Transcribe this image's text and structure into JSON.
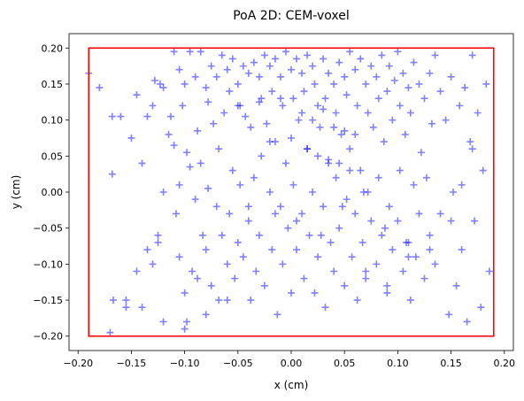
{
  "chart_data": {
    "type": "scatter",
    "title": "PoA 2D: CEM-voxel",
    "xlabel": "x (cm)",
    "ylabel": "y (cm)",
    "xlim": [
      -0.2085,
      0.2085
    ],
    "ylim": [
      -0.22,
      0.22
    ],
    "xticks": [
      -0.2,
      -0.15,
      -0.1,
      -0.05,
      0.0,
      0.05,
      0.1,
      0.15,
      0.2
    ],
    "xtick_labels": [
      "−0.20",
      "−0.15",
      "−0.10",
      "−0.05",
      "0.00",
      "0.05",
      "0.10",
      "0.15",
      "0.20"
    ],
    "yticks": [
      -0.2,
      -0.15,
      -0.1,
      -0.05,
      0.0,
      0.05,
      0.1,
      0.15,
      0.2
    ],
    "ytick_labels": [
      "−0.20",
      "−0.15",
      "−0.10",
      "−0.05",
      "0.00",
      "0.05",
      "0.10",
      "0.15",
      "0.20"
    ],
    "grid": false,
    "legend": false,
    "marker": "+",
    "marker_color": "#0000ff",
    "marker_alpha": 0.5,
    "boundary": {
      "x": [
        -0.19,
        0.19
      ],
      "y": [
        -0.2,
        0.2
      ],
      "color": "#ff0000"
    },
    "series": [
      {
        "x": [
          -0.19,
          -0.18,
          -0.17,
          -0.168,
          -0.168,
          -0.167,
          -0.16,
          -0.155,
          -0.155,
          -0.15,
          -0.145,
          -0.145,
          -0.14,
          -0.135,
          -0.135,
          -0.13,
          -0.13,
          -0.128,
          -0.125,
          -0.125,
          -0.123,
          -0.12,
          -0.12,
          -0.115,
          -0.113,
          -0.11,
          -0.11,
          -0.108,
          -0.105,
          -0.105,
          -0.105,
          -0.102,
          -0.1,
          -0.1,
          -0.098,
          -0.098,
          -0.095,
          -0.095,
          -0.093,
          -0.09,
          -0.09,
          -0.088,
          -0.088,
          -0.085,
          -0.085,
          -0.083,
          -0.08,
          -0.08,
          -0.078,
          -0.078,
          -0.075,
          -0.075,
          -0.073,
          -0.07,
          -0.07,
          -0.068,
          -0.068,
          -0.065,
          -0.065,
          -0.063,
          -0.06,
          -0.06,
          -0.058,
          -0.058,
          -0.055,
          -0.055,
          -0.053,
          -0.05,
          -0.05,
          -0.048,
          -0.048,
          -0.045,
          -0.045,
          -0.043,
          -0.04,
          -0.04,
          -0.038,
          -0.038,
          -0.035,
          -0.035,
          -0.033,
          -0.03,
          -0.03,
          -0.028,
          -0.028,
          -0.025,
          -0.025,
          -0.023,
          -0.02,
          -0.02,
          -0.018,
          -0.018,
          -0.015,
          -0.015,
          -0.013,
          -0.01,
          -0.01,
          -0.008,
          -0.008,
          -0.005,
          -0.005,
          -0.003,
          0.0,
          0.0,
          0.002,
          0.002,
          0.005,
          0.005,
          0.007,
          0.01,
          0.01,
          0.012,
          0.012,
          0.015,
          0.015,
          0.017,
          0.02,
          0.02,
          0.022,
          0.022,
          0.025,
          0.025,
          0.027,
          0.03,
          0.03,
          0.032,
          0.032,
          0.035,
          0.035,
          0.037,
          0.04,
          0.04,
          0.042,
          0.042,
          0.045,
          0.045,
          0.047,
          0.05,
          0.05,
          0.052,
          0.052,
          0.055,
          0.055,
          0.057,
          0.06,
          0.06,
          0.062,
          0.062,
          0.065,
          0.065,
          0.067,
          0.07,
          0.07,
          0.072,
          0.072,
          0.075,
          0.075,
          0.077,
          0.08,
          0.08,
          0.082,
          0.082,
          0.085,
          0.085,
          0.087,
          0.09,
          0.09,
          0.092,
          0.092,
          0.095,
          0.095,
          0.097,
          0.1,
          0.1,
          0.102,
          0.102,
          0.105,
          0.105,
          0.107,
          0.11,
          0.11,
          0.112,
          0.112,
          0.115,
          0.115,
          0.117,
          0.12,
          0.12,
          0.122,
          0.125,
          0.125,
          0.127,
          0.13,
          0.13,
          0.132,
          0.135,
          0.135,
          0.14,
          0.14,
          0.145,
          0.148,
          0.15,
          0.152,
          0.155,
          0.158,
          0.16,
          0.163,
          0.165,
          0.168,
          0.17,
          0.172,
          0.175,
          0.178,
          0.18,
          0.183,
          0.186,
          -0.05,
          -0.03,
          -0.01,
          0.01,
          0.02,
          0.03,
          0.04,
          0.05,
          0.06,
          -0.02,
          0.0,
          0.015,
          0.025,
          0.035,
          0.045,
          0.055,
          -0.04,
          -0.015,
          0.005,
          0.028,
          0.048,
          0.068,
          0.088,
          0.108,
          -0.06,
          -0.08,
          -0.1,
          0.07,
          0.09,
          0.11,
          0.13,
          -0.12,
          -0.14,
          0.15,
          0.16,
          0.17
        ],
        "y": [
          0.165,
          0.145,
          -0.195,
          0.105,
          0.025,
          -0.15,
          0.105,
          -0.16,
          -0.15,
          0.075,
          0.135,
          -0.11,
          -0.16,
          0.105,
          -0.08,
          0.12,
          -0.1,
          0.155,
          -0.07,
          -0.06,
          0.15,
          -0.18,
          0.145,
          0.08,
          0.105,
          0.195,
          0.065,
          -0.03,
          0.17,
          0.01,
          -0.09,
          0.12,
          0.15,
          -0.14,
          0.055,
          -0.18,
          0.195,
          0.035,
          -0.11,
          0.16,
          -0.01,
          0.085,
          -0.12,
          0.195,
          0.04,
          -0.06,
          0.145,
          -0.08,
          0.125,
          0.005,
          0.175,
          -0.13,
          0.095,
          0.16,
          -0.02,
          0.06,
          -0.15,
          0.19,
          -0.06,
          0.11,
          0.17,
          -0.1,
          0.14,
          -0.03,
          0.185,
          0.03,
          -0.12,
          0.15,
          -0.07,
          0.12,
          0.01,
          0.175,
          -0.09,
          0.105,
          0.165,
          -0.04,
          0.09,
          -0.15,
          0.18,
          0.02,
          -0.11,
          0.16,
          -0.06,
          0.13,
          0.05,
          0.19,
          -0.13,
          0.095,
          0.175,
          0.0,
          0.14,
          -0.08,
          0.185,
          0.07,
          -0.17,
          0.16,
          -0.02,
          0.12,
          -0.1,
          0.195,
          0.04,
          -0.05,
          0.17,
          -0.14,
          0.13,
          0.01,
          0.185,
          -0.08,
          0.1,
          0.165,
          -0.03,
          0.14,
          -0.12,
          0.19,
          0.06,
          -0.06,
          0.175,
          0.0,
          0.15,
          -0.14,
          0.12,
          -0.09,
          0.09,
          0.185,
          -0.02,
          0.13,
          -0.16,
          0.165,
          0.04,
          -0.07,
          0.15,
          -0.11,
          0.11,
          0.02,
          0.18,
          -0.05,
          0.08,
          0.16,
          -0.13,
          0.135,
          -0.01,
          0.195,
          0.06,
          -0.09,
          0.17,
          -0.03,
          0.12,
          -0.15,
          0.185,
          0.03,
          -0.07,
          0.15,
          -0.12,
          0.11,
          0.0,
          0.175,
          -0.04,
          0.09,
          0.16,
          -0.1,
          0.13,
          0.02,
          0.19,
          -0.06,
          0.07,
          0.14,
          -0.13,
          0.175,
          -0.02,
          0.1,
          -0.08,
          0.155,
          0.195,
          -0.04,
          0.12,
          0.03,
          0.165,
          -0.11,
          0.08,
          0.145,
          -0.07,
          0.11,
          -0.15,
          0.18,
          0.01,
          -0.09,
          0.15,
          -0.03,
          0.055,
          0.13,
          -0.12,
          0.02,
          0.165,
          -0.06,
          0.095,
          0.19,
          -0.1,
          0.14,
          -0.03,
          0.1,
          -0.17,
          0.16,
          0.0,
          -0.13,
          0.12,
          -0.08,
          0.145,
          -0.18,
          0.07,
          0.19,
          -0.04,
          0.11,
          -0.16,
          0.03,
          0.15,
          -0.11,
          0.12,
          0.125,
          0.13,
          0.11,
          0.1,
          0.115,
          0.09,
          0.085,
          0.08,
          0.07,
          0.075,
          0.06,
          0.05,
          0.045,
          0.04,
          0.03,
          -0.02,
          -0.03,
          -0.04,
          -0.06,
          -0.02,
          0.0,
          -0.05,
          -0.07,
          -0.15,
          -0.17,
          -0.19,
          -0.11,
          -0.14,
          -0.09,
          -0.08,
          0.0,
          0.04,
          -0.04,
          0.01,
          0.06
        ]
      }
    ]
  }
}
